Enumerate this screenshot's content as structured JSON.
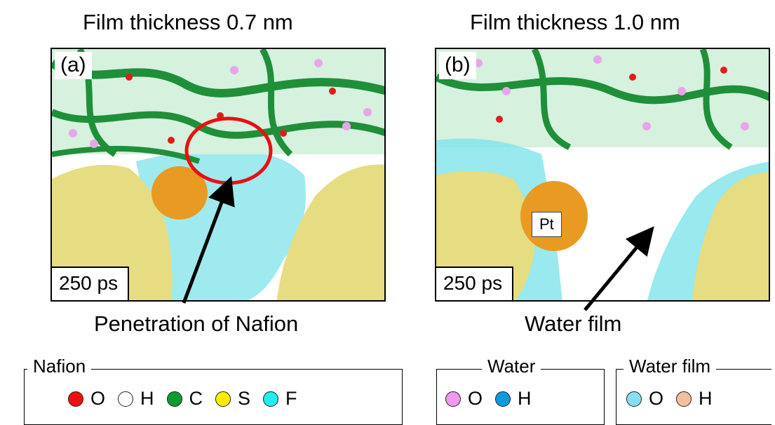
{
  "titles": {
    "left": "Film thickness 0.7 nm",
    "right": "Film thickness 1.0 nm"
  },
  "panels": {
    "left": {
      "tag": "(a)",
      "time": "250 ps"
    },
    "right": {
      "tag": "(b)",
      "time": "250 ps",
      "pt_label": "Pt"
    }
  },
  "annotations": {
    "left": "Penetration of Nafion",
    "right": "Water film"
  },
  "legends": {
    "nafion": {
      "title": "Nafion",
      "entries": [
        {
          "label": "O",
          "color": "#ee1111"
        },
        {
          "label": "H",
          "color": "#ffffff"
        },
        {
          "label": "C",
          "color": "#119933"
        },
        {
          "label": "S",
          "color": "#ffee00"
        },
        {
          "label": "F",
          "color": "#22eeee"
        }
      ]
    },
    "water": {
      "title": "Water",
      "entries": [
        {
          "label": "O",
          "color": "#ee99ee"
        },
        {
          "label": "H",
          "color": "#1199dd"
        }
      ]
    },
    "water_film": {
      "title": "Water film",
      "entries": [
        {
          "label": "O",
          "color": "#88ddf0"
        },
        {
          "label": "H",
          "color": "#f0c0a0"
        }
      ]
    }
  },
  "colors": {
    "carbon_support": "#e6dc82",
    "platinum": "#e89a22",
    "highlight_ring": "#e81010"
  }
}
